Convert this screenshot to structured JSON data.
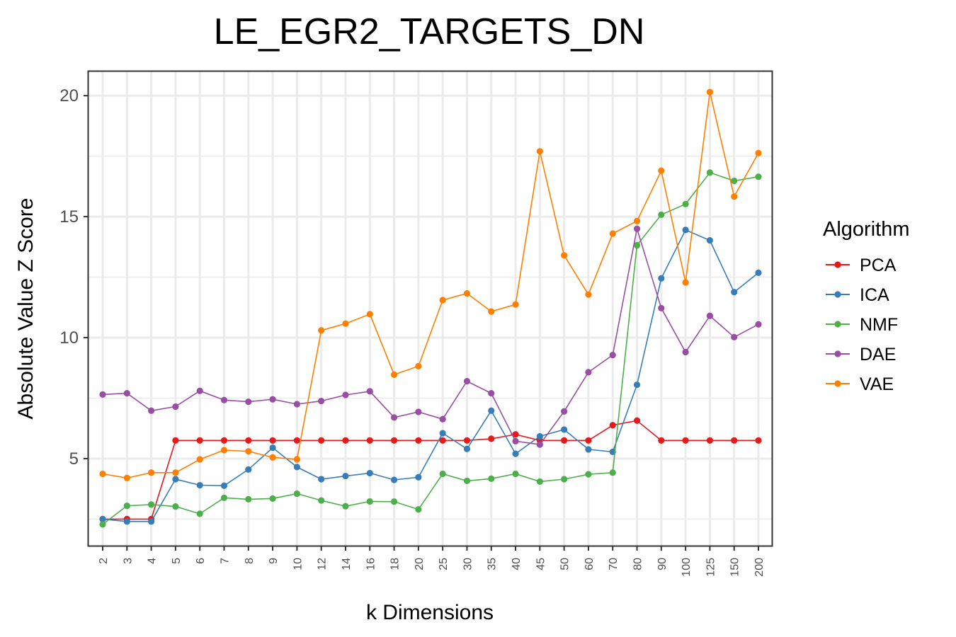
{
  "chart_data": {
    "type": "line",
    "title": "LE_EGR2_TARGETS_DN",
    "xlabel": "k Dimensions",
    "ylabel": "Absolute Value Z Score",
    "ylim": [
      1.4,
      21
    ],
    "yticks": [
      5,
      10,
      15,
      20
    ],
    "grid": true,
    "legend_title": "Algorithm",
    "legend_position": "right",
    "categories": [
      "2",
      "3",
      "4",
      "5",
      "6",
      "7",
      "8",
      "9",
      "10",
      "12",
      "14",
      "16",
      "18",
      "20",
      "25",
      "30",
      "35",
      "40",
      "45",
      "50",
      "60",
      "70",
      "80",
      "90",
      "100",
      "125",
      "150",
      "200"
    ],
    "series": [
      {
        "name": "PCA",
        "color": "#E41A1C",
        "values": [
          2.5,
          2.5,
          2.5,
          5.75,
          5.75,
          5.75,
          5.75,
          5.75,
          5.75,
          5.75,
          5.75,
          5.75,
          5.75,
          5.75,
          5.75,
          5.75,
          5.82,
          6.0,
          5.75,
          5.75,
          5.75,
          6.38,
          6.57,
          5.75,
          5.75,
          5.75,
          5.75,
          5.75
        ]
      },
      {
        "name": "ICA",
        "color": "#377EB8",
        "values": [
          2.5,
          2.4,
          2.4,
          4.15,
          3.9,
          3.88,
          4.55,
          5.45,
          4.65,
          4.15,
          4.28,
          4.4,
          4.12,
          4.23,
          6.05,
          5.4,
          6.98,
          5.2,
          5.92,
          6.2,
          5.38,
          5.28,
          8.05,
          12.45,
          14.45,
          14.02,
          11.88,
          12.68
        ]
      },
      {
        "name": "NMF",
        "color": "#4DAF4A",
        "values": [
          2.28,
          3.05,
          3.1,
          3.02,
          2.72,
          3.38,
          3.32,
          3.35,
          3.55,
          3.27,
          3.03,
          3.23,
          3.22,
          2.9,
          4.37,
          4.08,
          4.17,
          4.37,
          4.05,
          4.15,
          4.35,
          4.42,
          13.82,
          15.08,
          15.52,
          16.82,
          16.48,
          16.65
        ]
      },
      {
        "name": "DAE",
        "color": "#984EA3",
        "values": [
          7.65,
          7.7,
          6.98,
          7.15,
          7.8,
          7.42,
          7.35,
          7.45,
          7.25,
          7.38,
          7.63,
          7.78,
          6.7,
          6.93,
          6.63,
          8.2,
          7.7,
          5.72,
          5.58,
          6.95,
          8.57,
          9.28,
          14.5,
          11.22,
          9.4,
          10.9,
          10.02,
          10.55
        ]
      },
      {
        "name": "VAE",
        "color": "#FF7F00",
        "values": [
          4.37,
          4.2,
          4.42,
          4.42,
          4.97,
          5.35,
          5.3,
          5.05,
          4.97,
          10.3,
          10.58,
          10.97,
          8.47,
          8.82,
          11.55,
          11.83,
          11.08,
          11.37,
          17.7,
          13.4,
          11.78,
          14.3,
          14.82,
          16.9,
          12.28,
          20.15,
          15.83,
          17.63
        ]
      }
    ]
  }
}
